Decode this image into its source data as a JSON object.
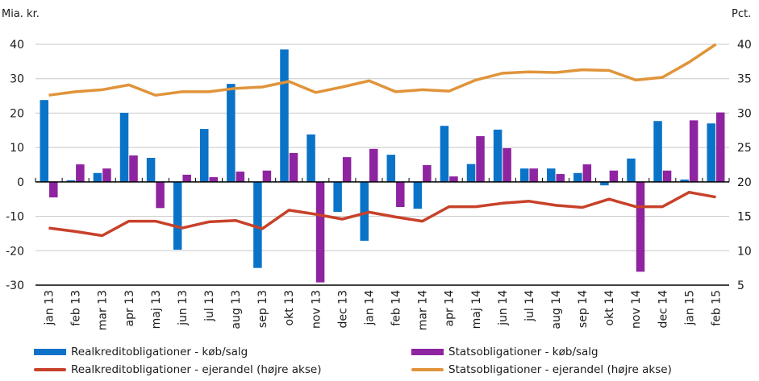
{
  "chart_data": {
    "type": "bar",
    "title": "",
    "left_axis_label": "Mia. kr.",
    "right_axis_label": "Pct.",
    "categories": [
      "jan 13",
      "feb 13",
      "mar 13",
      "apr 13",
      "maj 13",
      "jun 13",
      "jul 13",
      "aug 13",
      "sep 13",
      "okt 13",
      "nov 13",
      "dec 13",
      "jan 14",
      "feb 14",
      "mar 14",
      "apr 14",
      "maj 14",
      "jun 14",
      "jul 14",
      "aug 14",
      "sep 14",
      "okt 14",
      "nov 14",
      "dec 14",
      "jan 15",
      "feb 15"
    ],
    "ylim_left": [
      -30,
      40
    ],
    "yticks_left": [
      -30,
      -20,
      -10,
      0,
      10,
      20,
      30,
      40
    ],
    "ylim_right": [
      5,
      40
    ],
    "yticks_right": [
      5,
      10,
      15,
      20,
      25,
      30,
      35,
      40
    ],
    "grid": true,
    "legend_position": "bottom",
    "series": [
      {
        "name": "Realkreditobligationer - køb/salg",
        "type": "bar",
        "axis": "left",
        "color": "#0a73c8",
        "values": [
          23.8,
          0.5,
          2.6,
          20.1,
          7.0,
          -19.7,
          15.4,
          28.5,
          -25.0,
          38.5,
          13.8,
          -8.7,
          -17.1,
          7.9,
          -7.8,
          16.3,
          5.2,
          15.2,
          3.9,
          3.9,
          2.6,
          -1.0,
          6.8,
          17.7,
          0.7,
          17.0
        ]
      },
      {
        "name": "Statsobligationer - køb/salg",
        "type": "bar",
        "axis": "left",
        "color": "#8e24a0",
        "values": [
          -4.5,
          5.1,
          3.9,
          7.7,
          -7.6,
          2.1,
          1.4,
          3.0,
          3.3,
          8.4,
          -29.2,
          7.2,
          9.6,
          -7.3,
          4.9,
          1.6,
          13.3,
          9.8,
          3.9,
          2.3,
          5.1,
          3.3,
          -26.1,
          3.3,
          17.9,
          20.2
        ]
      },
      {
        "name": "Realkreditobligationer - ejerandel (højre akse)",
        "type": "line",
        "axis": "right",
        "color": "#c8412a",
        "values": [
          13.3,
          12.8,
          12.2,
          14.3,
          14.3,
          13.3,
          14.2,
          14.4,
          13.2,
          15.9,
          15.3,
          14.6,
          15.6,
          14.9,
          14.3,
          16.4,
          16.4,
          16.9,
          17.2,
          16.6,
          16.3,
          17.5,
          16.4,
          16.4,
          18.5,
          17.8
        ]
      },
      {
        "name": "Statsobligationer - ejerandel (højre akse)",
        "type": "line",
        "axis": "right",
        "color": "#e0943a",
        "values": [
          32.6,
          33.1,
          33.4,
          34.1,
          32.6,
          33.1,
          33.1,
          33.6,
          33.8,
          34.6,
          33.0,
          33.8,
          34.7,
          33.1,
          33.4,
          33.2,
          34.8,
          35.8,
          36.0,
          35.9,
          36.3,
          36.2,
          34.8,
          35.2,
          37.4,
          40.0
        ]
      }
    ]
  }
}
